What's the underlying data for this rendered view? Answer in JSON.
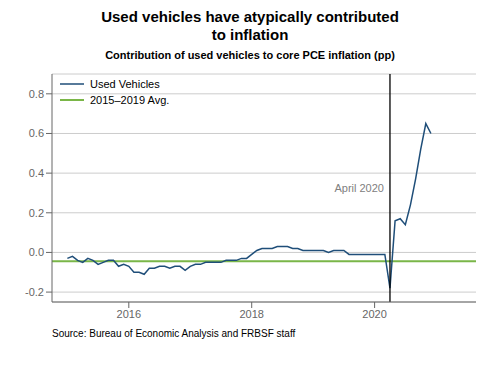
{
  "chart_data": {
    "type": "line",
    "title": "Used vehicles have atypically contributed\nto inflation",
    "subtitle": "Contribution of used vehicles to core PCE inflation (pp)",
    "source": "Source: Bureau of Economic Analysis and FRBSF staff",
    "x": [
      2015.0,
      2015.0833333333333,
      2015.1666666666667,
      2015.25,
      2015.3333333333333,
      2015.4166666666667,
      2015.5,
      2015.5833333333333,
      2015.6666666666667,
      2015.75,
      2015.8333333333333,
      2015.9166666666667,
      2016.0,
      2016.0833333333333,
      2016.1666666666667,
      2016.25,
      2016.3333333333333,
      2016.4166666666667,
      2016.5,
      2016.5833333333333,
      2016.6666666666667,
      2016.75,
      2016.8333333333333,
      2016.9166666666667,
      2017.0,
      2017.0833333333333,
      2017.1666666666667,
      2017.25,
      2017.3333333333333,
      2017.4166666666667,
      2017.5,
      2017.5833333333333,
      2017.6666666666667,
      2017.75,
      2017.8333333333333,
      2017.9166666666667,
      2018.0,
      2018.0833333333333,
      2018.1666666666667,
      2018.25,
      2018.3333333333333,
      2018.4166666666667,
      2018.5,
      2018.5833333333333,
      2018.6666666666667,
      2018.75,
      2018.8333333333333,
      2018.9166666666667,
      2019.0,
      2019.0833333333333,
      2019.1666666666667,
      2019.25,
      2019.3333333333333,
      2019.4166666666667,
      2019.5,
      2019.5833333333333,
      2019.6666666666667,
      2019.75,
      2019.8333333333333,
      2019.9166666666667,
      2020.0,
      2020.0833333333333,
      2020.1666666666667,
      2020.25,
      2020.3333333333333,
      2020.4166666666667,
      2020.5,
      2020.5833333333333,
      2020.6666666666667,
      2020.75,
      2020.8333333333333,
      2020.9166666666667
    ],
    "series": [
      {
        "name": "Used Vehicles",
        "color": "#1f4e79",
        "values": [
          -0.03,
          -0.02,
          -0.04,
          -0.05,
          -0.03,
          -0.04,
          -0.06,
          -0.05,
          -0.04,
          -0.04,
          -0.07,
          -0.06,
          -0.07,
          -0.1,
          -0.1,
          -0.11,
          -0.08,
          -0.08,
          -0.07,
          -0.07,
          -0.08,
          -0.07,
          -0.07,
          -0.09,
          -0.07,
          -0.06,
          -0.06,
          -0.05,
          -0.05,
          -0.05,
          -0.05,
          -0.04,
          -0.04,
          -0.04,
          -0.03,
          -0.03,
          -0.01,
          0.01,
          0.02,
          0.02,
          0.02,
          0.03,
          0.03,
          0.03,
          0.02,
          0.02,
          0.01,
          0.01,
          0.01,
          0.01,
          0.01,
          0.0,
          0.01,
          0.01,
          0.01,
          -0.01,
          -0.01,
          -0.01,
          -0.01,
          -0.01,
          -0.01,
          -0.01,
          -0.01,
          -0.18,
          0.16,
          0.17,
          0.14,
          0.24,
          0.37,
          0.52,
          0.65,
          0.6
        ]
      },
      {
        "name": "2015–2019 Avg.",
        "color": "#7ab648",
        "type": "hline",
        "value": -0.045
      }
    ],
    "annotations": [
      {
        "x": 2020.25,
        "text": "April 2020",
        "color": "#000000"
      }
    ],
    "xlim": [
      2014.75,
      2021.65
    ],
    "xticks": [
      2016,
      2018,
      2020
    ],
    "ylim": [
      -0.25,
      0.9
    ],
    "yticks": [
      -0.2,
      {
        "value": 0.0,
        "label": "0.0"
      },
      0.2,
      0.4,
      0.6,
      0.8
    ],
    "grid": "y",
    "legend": "upper left"
  }
}
